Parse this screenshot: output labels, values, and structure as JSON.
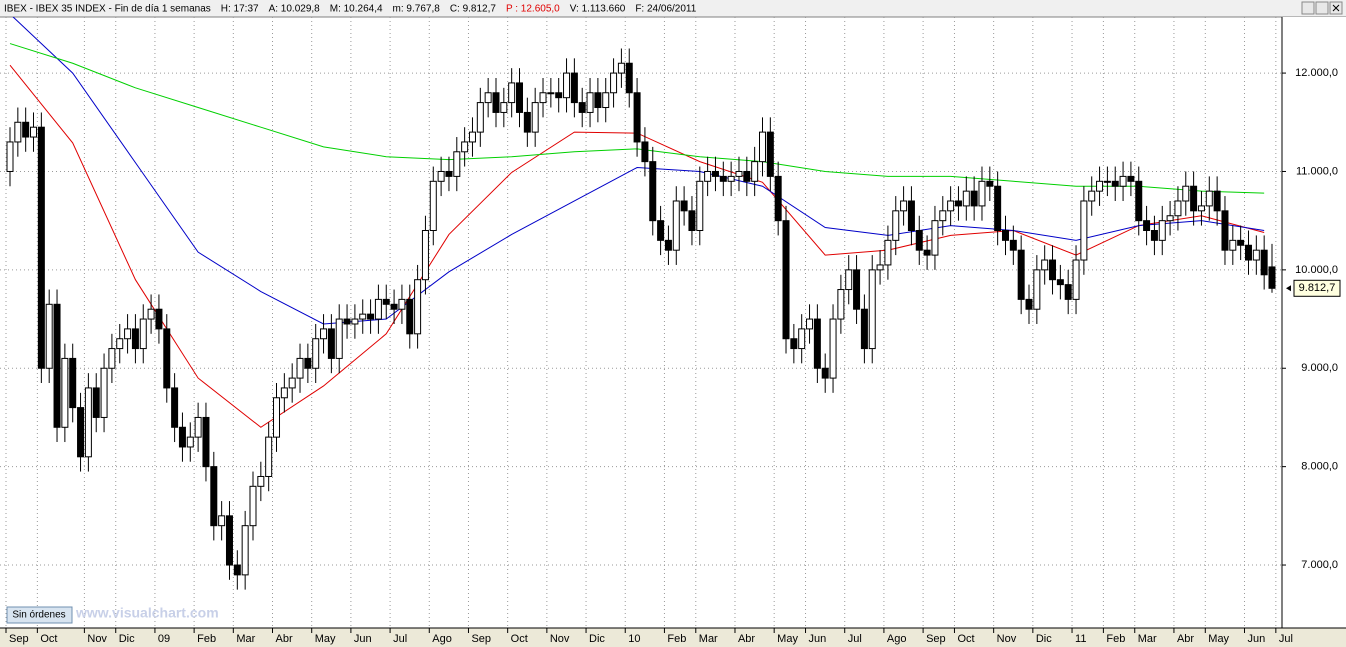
{
  "header": {
    "items": [
      "IBEX - IBEX 35 INDEX - Fin de día 1 semanas",
      "H: 17:37",
      "A: 10.029,8",
      "M: 10.264,4",
      "m: 9.767,8",
      "C: 9.812,7",
      "P : 12.605,0",
      "V: 1.113.660",
      "F: 24/06/2011"
    ]
  },
  "button": "Sin órdenes",
  "watermark": "www.visualchart.com",
  "chart_data": {
    "type": "candlestick",
    "up_color": "#ffffff",
    "down_color": "#000000",
    "open": [
      11000,
      11300,
      11500,
      11350,
      11450,
      9000,
      9650,
      8400,
      9100,
      8600,
      8100,
      8800,
      8500,
      9000,
      9200,
      9300,
      9400,
      9200,
      9500,
      9600,
      9400,
      8800,
      8400,
      8200,
      8300,
      8500,
      8000,
      7400,
      7500,
      7000,
      6900,
      7400,
      7800,
      7900,
      8300,
      8700,
      8800,
      8900,
      9100,
      9000,
      9300,
      9400,
      9100,
      9500,
      9450,
      9500,
      9550,
      9500,
      9700,
      9650,
      9600,
      9700,
      9350,
      9900,
      10400,
      10900,
      11000,
      10950,
      11200,
      11300,
      11400,
      11700,
      11800,
      11600,
      11700,
      11900,
      11600,
      11400,
      11700,
      11800,
      11800,
      11750,
      12000,
      11700,
      11600,
      11800,
      11650,
      11800,
      12000,
      12100,
      11800,
      11300,
      11100,
      10500,
      10300,
      10200,
      10700,
      10600,
      10400,
      10900,
      11000,
      10950,
      10900,
      10950,
      11000,
      10900,
      11100,
      11400,
      10950,
      10500,
      9300,
      9200,
      9400,
      9500,
      9000,
      8900,
      9500,
      9800,
      10000,
      9600,
      9200,
      10000,
      10050,
      10300,
      10600,
      10700,
      10400,
      10200,
      10150,
      10500,
      10600,
      10700,
      10650,
      10800,
      10650,
      10900,
      10850,
      10400,
      10300,
      10200,
      9700,
      9600,
      10000,
      10100,
      9900,
      9850,
      9700,
      10100,
      10700,
      10800,
      10900,
      10900,
      10850,
      10950,
      10900,
      10500,
      10400,
      10300,
      10500,
      10550,
      10700,
      10850,
      10600,
      10650,
      10800,
      10600,
      10200,
      10300,
      10250,
      10100,
      10200,
      10029.8
    ],
    "high": [
      11450,
      11650,
      11650,
      11600,
      11600,
      9800,
      9800,
      9250,
      9250,
      8750,
      8950,
      8950,
      9150,
      9350,
      9450,
      9550,
      9550,
      9650,
      9750,
      9750,
      9550,
      8950,
      8550,
      8450,
      8650,
      8650,
      8150,
      7650,
      7650,
      7150,
      7550,
      7950,
      8050,
      8450,
      8850,
      8950,
      9050,
      9250,
      9250,
      9450,
      9550,
      9550,
      9650,
      9650,
      9650,
      9700,
      9700,
      9850,
      9850,
      9800,
      9850,
      9850,
      10050,
      10550,
      11050,
      11150,
      11150,
      11350,
      11450,
      11550,
      11850,
      11950,
      11950,
      11850,
      12050,
      12050,
      11750,
      11850,
      11950,
      11950,
      11950,
      12150,
      12150,
      11850,
      11950,
      11950,
      11950,
      12150,
      12250,
      12250,
      11950,
      11450,
      11250,
      10650,
      10450,
      10850,
      10850,
      10750,
      11050,
      11150,
      11150,
      11100,
      11100,
      11150,
      11150,
      11250,
      11550,
      11550,
      11100,
      10650,
      9450,
      9550,
      9650,
      9650,
      9150,
      9650,
      9950,
      10150,
      10150,
      9750,
      10150,
      10200,
      10450,
      10750,
      10850,
      10850,
      10550,
      10350,
      10650,
      10750,
      10850,
      10850,
      10950,
      10950,
      11050,
      11050,
      11000,
      10550,
      10450,
      10350,
      9850,
      10150,
      10250,
      10250,
      10050,
      10000,
      10250,
      10850,
      10950,
      11050,
      11050,
      11050,
      11100,
      11100,
      11050,
      10650,
      10550,
      10650,
      10700,
      10850,
      11000,
      11000,
      10800,
      10950,
      10950,
      10750,
      10450,
      10450,
      10400,
      10350,
      10350,
      10264.4
    ],
    "low": [
      10850,
      11150,
      11200,
      11200,
      8850,
      8850,
      8250,
      8250,
      8450,
      7950,
      7950,
      8350,
      8350,
      8850,
      9050,
      9150,
      9050,
      9050,
      9350,
      9250,
      8650,
      8250,
      8050,
      8050,
      8150,
      7850,
      7250,
      7250,
      6850,
      6750,
      6750,
      7250,
      7650,
      7750,
      8150,
      8550,
      8650,
      8750,
      8850,
      8850,
      9150,
      8950,
      8950,
      9300,
      9300,
      9350,
      9350,
      9350,
      9500,
      9450,
      9450,
      9200,
      9200,
      9750,
      10250,
      10750,
      10800,
      10800,
      11050,
      11150,
      11250,
      11550,
      11450,
      11450,
      11550,
      11450,
      11250,
      11250,
      11550,
      11650,
      11600,
      11600,
      11550,
      11450,
      11450,
      11500,
      11500,
      11650,
      11850,
      11650,
      11150,
      10950,
      10350,
      10150,
      10050,
      10050,
      10450,
      10250,
      10250,
      10750,
      10800,
      10750,
      10750,
      10800,
      10750,
      10750,
      10950,
      10800,
      10350,
      9150,
      9050,
      9050,
      9250,
      8850,
      8750,
      8750,
      9350,
      9650,
      9450,
      9050,
      9050,
      9850,
      9900,
      10150,
      10450,
      10250,
      10050,
      10000,
      10000,
      10350,
      10450,
      10500,
      10500,
      10500,
      10500,
      10700,
      10250,
      10150,
      10050,
      9550,
      9450,
      9450,
      9850,
      9750,
      9700,
      9550,
      9550,
      9950,
      10550,
      10650,
      10750,
      10700,
      10700,
      10750,
      10350,
      10250,
      10150,
      10150,
      10350,
      10400,
      10550,
      10450,
      10450,
      10500,
      10450,
      10050,
      10050,
      10100,
      9950,
      9950,
      9800,
      9767.8
    ],
    "close": [
      11300,
      11500,
      11350,
      11450,
      9000,
      9650,
      8400,
      9100,
      8600,
      8100,
      8800,
      8500,
      9000,
      9200,
      9300,
      9400,
      9200,
      9500,
      9600,
      9400,
      8800,
      8400,
      8200,
      8300,
      8500,
      8000,
      7400,
      7500,
      7000,
      6900,
      7400,
      7800,
      7900,
      8300,
      8700,
      8800,
      8900,
      9100,
      9000,
      9300,
      9400,
      9100,
      9500,
      9450,
      9500,
      9550,
      9500,
      9700,
      9650,
      9600,
      9700,
      9350,
      9900,
      10400,
      10900,
      11000,
      10950,
      11200,
      11300,
      11400,
      11700,
      11800,
      11600,
      11700,
      11900,
      11600,
      11400,
      11700,
      11800,
      11800,
      11750,
      12000,
      11700,
      11600,
      11800,
      11650,
      11800,
      12000,
      12100,
      11800,
      11300,
      11100,
      10500,
      10300,
      10200,
      10700,
      10600,
      10400,
      10900,
      11000,
      10950,
      10900,
      10950,
      11000,
      10900,
      11100,
      11400,
      10950,
      10500,
      9300,
      9200,
      9400,
      9500,
      9000,
      8900,
      9500,
      9800,
      10000,
      9600,
      9200,
      10000,
      10050,
      10300,
      10600,
      10700,
      10400,
      10200,
      10150,
      10500,
      10600,
      10700,
      10650,
      10800,
      10650,
      10900,
      10850,
      10400,
      10300,
      10200,
      9700,
      9600,
      10000,
      10100,
      9900,
      9850,
      9700,
      10100,
      10700,
      10800,
      10900,
      10900,
      10850,
      10950,
      10900,
      10500,
      10400,
      10300,
      10500,
      10550,
      10700,
      10850,
      10600,
      10650,
      10800,
      10600,
      10200,
      10300,
      10250,
      10100,
      10200,
      9950,
      9812.7
    ],
    "last_label": "9.812,7",
    "series": [
      {
        "color": "#e00000",
        "x": [
          0,
          8,
          16,
          24,
          32,
          40,
          48,
          56,
          64,
          72,
          80,
          88,
          96,
          104,
          112,
          120,
          128,
          136,
          144,
          152,
          160
        ],
        "values": [
          12080,
          11290,
          9900,
          8900,
          8400,
          8820,
          9350,
          10360,
          10990,
          11400,
          11390,
          11100,
          10890,
          10150,
          10200,
          10350,
          10400,
          10150,
          10450,
          10550,
          10380
        ]
      },
      {
        "color": "#0000c8",
        "x": [
          0,
          8,
          16,
          24,
          32,
          40,
          48,
          56,
          64,
          72,
          80,
          88,
          96,
          104,
          112,
          120,
          128,
          136,
          144,
          152,
          160
        ],
        "values": [
          12600,
          12000,
          11090,
          10180,
          9780,
          9450,
          9500,
          9980,
          10360,
          10700,
          11040,
          11000,
          10850,
          10430,
          10350,
          10450,
          10400,
          10300,
          10450,
          10500,
          10400
        ]
      },
      {
        "color": "#00d000",
        "x": [
          0,
          8,
          16,
          24,
          32,
          40,
          48,
          56,
          64,
          72,
          80,
          88,
          96,
          104,
          112,
          120,
          128,
          136,
          144,
          152,
          160
        ],
        "values": [
          12300,
          12100,
          11850,
          11650,
          11450,
          11250,
          11150,
          11120,
          11150,
          11200,
          11230,
          11150,
          11100,
          11000,
          10950,
          10950,
          10900,
          10850,
          10850,
          10800,
          10780
        ]
      }
    ],
    "ylim": [
      6360,
      12570
    ],
    "yticks": [
      {
        "value": 7000,
        "label": "7.000,0"
      },
      {
        "value": 8000,
        "label": "8.000,0"
      },
      {
        "value": 9000,
        "label": "9.000,0"
      },
      {
        "value": 10000,
        "label": "10.000,0"
      },
      {
        "value": 11000,
        "label": "11.000,0"
      },
      {
        "value": 12000,
        "label": "12.000,0"
      }
    ],
    "xlim": [
      0,
      161
    ],
    "xticks": [
      {
        "value": 0,
        "label": "Sep"
      },
      {
        "value": 4,
        "label": "Oct"
      },
      {
        "value": 10,
        "label": "Nov"
      },
      {
        "value": 14,
        "label": "Dic"
      },
      {
        "value": 19,
        "label": "09"
      },
      {
        "value": 24,
        "label": "Feb"
      },
      {
        "value": 29,
        "label": "Mar"
      },
      {
        "value": 34,
        "label": "Abr"
      },
      {
        "value": 39,
        "label": "May"
      },
      {
        "value": 44,
        "label": "Jun"
      },
      {
        "value": 49,
        "label": "Jul"
      },
      {
        "value": 54,
        "label": "Ago"
      },
      {
        "value": 59,
        "label": "Sep"
      },
      {
        "value": 64,
        "label": "Oct"
      },
      {
        "value": 69,
        "label": "Nov"
      },
      {
        "value": 74,
        "label": "Dic"
      },
      {
        "value": 79,
        "label": "10"
      },
      {
        "value": 84,
        "label": "Feb"
      },
      {
        "value": 88,
        "label": "Mar"
      },
      {
        "value": 93,
        "label": "Abr"
      },
      {
        "value": 98,
        "label": "May"
      },
      {
        "value": 102,
        "label": "Jun"
      },
      {
        "value": 107,
        "label": "Jul"
      },
      {
        "value": 112,
        "label": "Ago"
      },
      {
        "value": 117,
        "label": "Sep"
      },
      {
        "value": 121,
        "label": "Oct"
      },
      {
        "value": 126,
        "label": "Nov"
      },
      {
        "value": 131,
        "label": "Dic"
      },
      {
        "value": 136,
        "label": "11"
      },
      {
        "value": 140,
        "label": "Feb"
      },
      {
        "value": 144,
        "label": "Mar"
      },
      {
        "value": 149,
        "label": "Abr"
      },
      {
        "value": 153,
        "label": "May"
      },
      {
        "value": 158,
        "label": "Jun"
      },
      {
        "value": 162,
        "label": "Jul"
      }
    ],
    "grid": true
  }
}
